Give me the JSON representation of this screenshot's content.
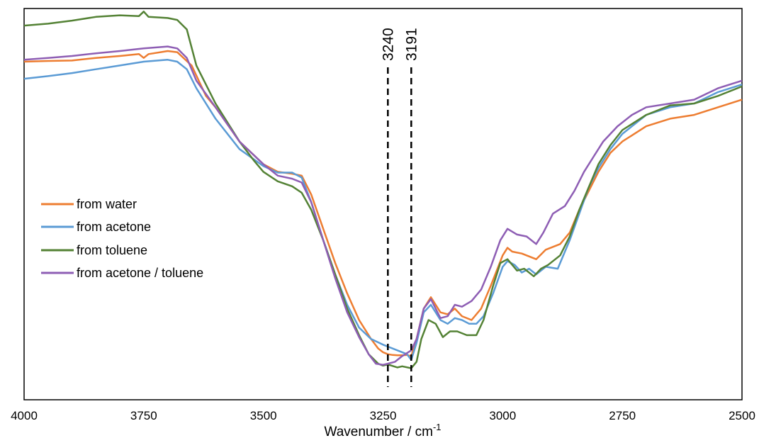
{
  "chart_data": {
    "type": "line",
    "title": "",
    "xlabel": "Wavenumber / cm",
    "xlabel_superscript": "-1",
    "ylabel": "",
    "xlim": [
      4000,
      2500
    ],
    "x_reversed": true,
    "x_ticks": [
      4000,
      3750,
      3500,
      3250,
      3000,
      2750,
      2500
    ],
    "y_ticks_shown": false,
    "grid": false,
    "legend_position": "middle-left",
    "annotations": [
      {
        "label": "3240",
        "x": 3240,
        "style": "dashed-vertical"
      },
      {
        "label": "3191",
        "x": 3191,
        "style": "dashed-vertical"
      }
    ],
    "series": [
      {
        "name": "from water",
        "color": "#ED7D31",
        "points": [
          [
            4000,
            0.89
          ],
          [
            3950,
            0.892
          ],
          [
            3900,
            0.893
          ],
          [
            3850,
            0.9
          ],
          [
            3800,
            0.905
          ],
          [
            3760,
            0.91
          ],
          [
            3750,
            0.9
          ],
          [
            3740,
            0.91
          ],
          [
            3700,
            0.918
          ],
          [
            3680,
            0.915
          ],
          [
            3650,
            0.88
          ],
          [
            3620,
            0.8
          ],
          [
            3600,
            0.77
          ],
          [
            3550,
            0.68
          ],
          [
            3500,
            0.62
          ],
          [
            3470,
            0.6
          ],
          [
            3440,
            0.595
          ],
          [
            3420,
            0.59
          ],
          [
            3400,
            0.54
          ],
          [
            3375,
            0.45
          ],
          [
            3350,
            0.36
          ],
          [
            3325,
            0.28
          ],
          [
            3300,
            0.21
          ],
          [
            3275,
            0.16
          ],
          [
            3260,
            0.135
          ],
          [
            3250,
            0.125
          ],
          [
            3240,
            0.12
          ],
          [
            3230,
            0.118
          ],
          [
            3220,
            0.117
          ],
          [
            3210,
            0.117
          ],
          [
            3200,
            0.118
          ],
          [
            3191,
            0.115
          ],
          [
            3180,
            0.16
          ],
          [
            3165,
            0.24
          ],
          [
            3150,
            0.27
          ],
          [
            3130,
            0.23
          ],
          [
            3115,
            0.225
          ],
          [
            3100,
            0.24
          ],
          [
            3085,
            0.22
          ],
          [
            3065,
            0.21
          ],
          [
            3045,
            0.24
          ],
          [
            3025,
            0.3
          ],
          [
            3000,
            0.38
          ],
          [
            2990,
            0.4
          ],
          [
            2980,
            0.39
          ],
          [
            2960,
            0.385
          ],
          [
            2930,
            0.37
          ],
          [
            2910,
            0.395
          ],
          [
            2880,
            0.41
          ],
          [
            2860,
            0.44
          ],
          [
            2840,
            0.5
          ],
          [
            2820,
            0.55
          ],
          [
            2800,
            0.6
          ],
          [
            2775,
            0.65
          ],
          [
            2750,
            0.68
          ],
          [
            2700,
            0.72
          ],
          [
            2650,
            0.74
          ],
          [
            2600,
            0.75
          ],
          [
            2550,
            0.77
          ],
          [
            2500,
            0.79
          ]
        ]
      },
      {
        "name": "from acetone",
        "color": "#5B9BD5",
        "points": [
          [
            4000,
            0.845
          ],
          [
            3950,
            0.852
          ],
          [
            3900,
            0.86
          ],
          [
            3850,
            0.87
          ],
          [
            3800,
            0.88
          ],
          [
            3750,
            0.89
          ],
          [
            3700,
            0.895
          ],
          [
            3680,
            0.89
          ],
          [
            3660,
            0.87
          ],
          [
            3640,
            0.82
          ],
          [
            3600,
            0.74
          ],
          [
            3550,
            0.66
          ],
          [
            3500,
            0.615
          ],
          [
            3470,
            0.598
          ],
          [
            3440,
            0.598
          ],
          [
            3420,
            0.585
          ],
          [
            3400,
            0.52
          ],
          [
            3375,
            0.42
          ],
          [
            3350,
            0.33
          ],
          [
            3325,
            0.25
          ],
          [
            3300,
            0.19
          ],
          [
            3275,
            0.16
          ],
          [
            3250,
            0.145
          ],
          [
            3240,
            0.14
          ],
          [
            3220,
            0.13
          ],
          [
            3200,
            0.12
          ],
          [
            3191,
            0.105
          ],
          [
            3180,
            0.15
          ],
          [
            3165,
            0.23
          ],
          [
            3150,
            0.25
          ],
          [
            3130,
            0.21
          ],
          [
            3115,
            0.2
          ],
          [
            3100,
            0.215
          ],
          [
            3085,
            0.21
          ],
          [
            3070,
            0.2
          ],
          [
            3055,
            0.2
          ],
          [
            3040,
            0.22
          ],
          [
            3020,
            0.28
          ],
          [
            3000,
            0.35
          ],
          [
            2990,
            0.365
          ],
          [
            2975,
            0.355
          ],
          [
            2960,
            0.335
          ],
          [
            2945,
            0.345
          ],
          [
            2930,
            0.33
          ],
          [
            2910,
            0.35
          ],
          [
            2885,
            0.345
          ],
          [
            2860,
            0.42
          ],
          [
            2840,
            0.49
          ],
          [
            2820,
            0.56
          ],
          [
            2800,
            0.61
          ],
          [
            2775,
            0.66
          ],
          [
            2750,
            0.7
          ],
          [
            2700,
            0.75
          ],
          [
            2650,
            0.77
          ],
          [
            2600,
            0.78
          ],
          [
            2550,
            0.81
          ],
          [
            2500,
            0.83
          ]
        ]
      },
      {
        "name": "from toluene",
        "color": "#548235",
        "points": [
          [
            4000,
            0.985
          ],
          [
            3950,
            0.99
          ],
          [
            3900,
            0.998
          ],
          [
            3850,
            1.008
          ],
          [
            3800,
            1.012
          ],
          [
            3760,
            1.01
          ],
          [
            3750,
            1.022
          ],
          [
            3740,
            1.008
          ],
          [
            3700,
            1.005
          ],
          [
            3680,
            1.0
          ],
          [
            3660,
            0.975
          ],
          [
            3640,
            0.88
          ],
          [
            3600,
            0.78
          ],
          [
            3580,
            0.74
          ],
          [
            3550,
            0.68
          ],
          [
            3520,
            0.63
          ],
          [
            3500,
            0.6
          ],
          [
            3470,
            0.575
          ],
          [
            3440,
            0.562
          ],
          [
            3420,
            0.545
          ],
          [
            3400,
            0.5
          ],
          [
            3375,
            0.42
          ],
          [
            3350,
            0.33
          ],
          [
            3325,
            0.24
          ],
          [
            3300,
            0.17
          ],
          [
            3280,
            0.12
          ],
          [
            3260,
            0.095
          ],
          [
            3250,
            0.09
          ],
          [
            3240,
            0.093
          ],
          [
            3220,
            0.085
          ],
          [
            3210,
            0.088
          ],
          [
            3191,
            0.083
          ],
          [
            3180,
            0.1
          ],
          [
            3170,
            0.16
          ],
          [
            3155,
            0.21
          ],
          [
            3140,
            0.2
          ],
          [
            3125,
            0.165
          ],
          [
            3110,
            0.18
          ],
          [
            3095,
            0.18
          ],
          [
            3075,
            0.17
          ],
          [
            3055,
            0.17
          ],
          [
            3040,
            0.21
          ],
          [
            3020,
            0.3
          ],
          [
            3005,
            0.36
          ],
          [
            2990,
            0.37
          ],
          [
            2970,
            0.34
          ],
          [
            2955,
            0.345
          ],
          [
            2935,
            0.325
          ],
          [
            2920,
            0.345
          ],
          [
            2905,
            0.355
          ],
          [
            2880,
            0.38
          ],
          [
            2860,
            0.43
          ],
          [
            2840,
            0.5
          ],
          [
            2820,
            0.56
          ],
          [
            2800,
            0.62
          ],
          [
            2775,
            0.67
          ],
          [
            2750,
            0.71
          ],
          [
            2700,
            0.75
          ],
          [
            2650,
            0.775
          ],
          [
            2600,
            0.78
          ],
          [
            2550,
            0.8
          ],
          [
            2500,
            0.825
          ]
        ]
      },
      {
        "name": "from acetone / toluene",
        "color": "#8E5EB4",
        "points": [
          [
            4000,
            0.895
          ],
          [
            3950,
            0.9
          ],
          [
            3900,
            0.905
          ],
          [
            3850,
            0.912
          ],
          [
            3800,
            0.918
          ],
          [
            3750,
            0.925
          ],
          [
            3700,
            0.93
          ],
          [
            3680,
            0.925
          ],
          [
            3660,
            0.9
          ],
          [
            3640,
            0.84
          ],
          [
            3600,
            0.77
          ],
          [
            3550,
            0.68
          ],
          [
            3500,
            0.62
          ],
          [
            3470,
            0.59
          ],
          [
            3440,
            0.582
          ],
          [
            3420,
            0.572
          ],
          [
            3400,
            0.52
          ],
          [
            3375,
            0.42
          ],
          [
            3350,
            0.32
          ],
          [
            3325,
            0.23
          ],
          [
            3300,
            0.165
          ],
          [
            3280,
            0.12
          ],
          [
            3265,
            0.095
          ],
          [
            3250,
            0.092
          ],
          [
            3240,
            0.095
          ],
          [
            3225,
            0.1
          ],
          [
            3210,
            0.115
          ],
          [
            3191,
            0.13
          ],
          [
            3180,
            0.16
          ],
          [
            3165,
            0.24
          ],
          [
            3150,
            0.265
          ],
          [
            3130,
            0.215
          ],
          [
            3115,
            0.22
          ],
          [
            3100,
            0.25
          ],
          [
            3085,
            0.245
          ],
          [
            3065,
            0.26
          ],
          [
            3045,
            0.29
          ],
          [
            3025,
            0.35
          ],
          [
            3005,
            0.42
          ],
          [
            2990,
            0.45
          ],
          [
            2970,
            0.435
          ],
          [
            2950,
            0.43
          ],
          [
            2930,
            0.41
          ],
          [
            2915,
            0.44
          ],
          [
            2895,
            0.49
          ],
          [
            2870,
            0.51
          ],
          [
            2850,
            0.55
          ],
          [
            2830,
            0.6
          ],
          [
            2810,
            0.64
          ],
          [
            2790,
            0.68
          ],
          [
            2760,
            0.72
          ],
          [
            2730,
            0.75
          ],
          [
            2700,
            0.77
          ],
          [
            2650,
            0.78
          ],
          [
            2600,
            0.79
          ],
          [
            2550,
            0.82
          ],
          [
            2500,
            0.84
          ]
        ]
      }
    ]
  }
}
